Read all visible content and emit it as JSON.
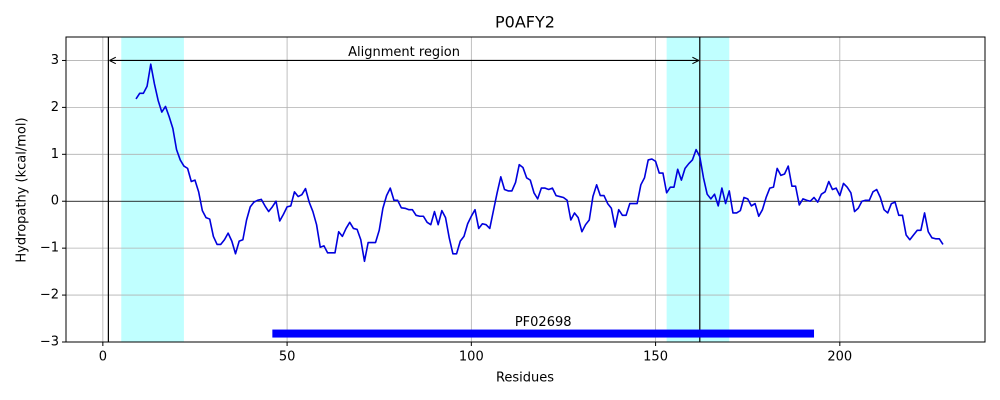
{
  "chart_data": {
    "type": "line",
    "title": "P0AFY2",
    "xlabel": "Residues",
    "ylabel": "Hydropathy (kcal/mol)",
    "xlim": [
      -10,
      239.4
    ],
    "ylim": [
      -3,
      3.5
    ],
    "xticks": [
      0,
      50,
      100,
      150,
      200
    ],
    "yticks": [
      {
        "value": -3,
        "label": "−3"
      },
      {
        "value": -2,
        "label": "−2"
      },
      {
        "value": -1,
        "label": "−1"
      },
      0,
      1,
      2,
      3
    ],
    "grid": true,
    "x": [
      9,
      10,
      11,
      12,
      13,
      14,
      15,
      16,
      17,
      18,
      19,
      20,
      21,
      22,
      23,
      24,
      25,
      26,
      27,
      28,
      29,
      30,
      31,
      32,
      33,
      34,
      35,
      36,
      37,
      38,
      39,
      40,
      41,
      42,
      43,
      44,
      45,
      46,
      47,
      48,
      49,
      50,
      51,
      52,
      53,
      54,
      55,
      56,
      57,
      58,
      59,
      60,
      61,
      62,
      63,
      64,
      65,
      66,
      67,
      68,
      69,
      70,
      71,
      72,
      73,
      74,
      75,
      76,
      77,
      78,
      79,
      80,
      81,
      82,
      83,
      84,
      85,
      86,
      87,
      88,
      89,
      90,
      91,
      92,
      93,
      94,
      95,
      96,
      97,
      98,
      99,
      100,
      101,
      102,
      103,
      104,
      105,
      106,
      107,
      108,
      109,
      110,
      111,
      112,
      113,
      114,
      115,
      116,
      117,
      118,
      119,
      120,
      121,
      122,
      123,
      124,
      125,
      126,
      127,
      128,
      129,
      130,
      131,
      132,
      133,
      134,
      135,
      136,
      137,
      138,
      139,
      140,
      141,
      142,
      143,
      144,
      145,
      146,
      147,
      148,
      149,
      150,
      151,
      152,
      153,
      154,
      155,
      156,
      157,
      158,
      159,
      160,
      161,
      162,
      163,
      164,
      165,
      166,
      167,
      168,
      169,
      170,
      171,
      172,
      173,
      174,
      175,
      176,
      177,
      178,
      179,
      180,
      181,
      182,
      183,
      184,
      185,
      186,
      187,
      188,
      189,
      190,
      191,
      192,
      193,
      194,
      195,
      196,
      197,
      198,
      199,
      200,
      201,
      202,
      203,
      204,
      205,
      206,
      207,
      208,
      209,
      210,
      211,
      212,
      213,
      214,
      215,
      216,
      217,
      218,
      219,
      220,
      221,
      222,
      223,
      224,
      225,
      226,
      227,
      228
    ],
    "series": [
      {
        "color": "#0000dd",
        "values": [
          2.18,
          2.3,
          2.3,
          2.45,
          2.92,
          2.5,
          2.15,
          1.9,
          2.02,
          1.8,
          1.55,
          1.1,
          0.88,
          0.75,
          0.7,
          0.42,
          0.45,
          0.2,
          -0.2,
          -0.35,
          -0.38,
          -0.75,
          -0.92,
          -0.92,
          -0.82,
          -0.68,
          -0.85,
          -1.12,
          -0.85,
          -0.82,
          -0.4,
          -0.12,
          -0.02,
          0.02,
          0.04,
          -0.1,
          -0.22,
          -0.12,
          0.0,
          -0.42,
          -0.28,
          -0.12,
          -0.1,
          0.2,
          0.1,
          0.14,
          0.27,
          -0.02,
          -0.22,
          -0.5,
          -0.98,
          -0.95,
          -1.1,
          -1.1,
          -1.1,
          -0.65,
          -0.75,
          -0.58,
          -0.45,
          -0.58,
          -0.6,
          -0.82,
          -1.28,
          -0.88,
          -0.88,
          -0.88,
          -0.62,
          -0.15,
          0.12,
          0.28,
          0.02,
          0.02,
          -0.14,
          -0.15,
          -0.18,
          -0.18,
          -0.3,
          -0.32,
          -0.32,
          -0.45,
          -0.5,
          -0.22,
          -0.5,
          -0.2,
          -0.35,
          -0.78,
          -1.12,
          -1.12,
          -0.85,
          -0.75,
          -0.48,
          -0.32,
          -0.18,
          -0.58,
          -0.48,
          -0.5,
          -0.58,
          -0.2,
          0.18,
          0.52,
          0.25,
          0.22,
          0.22,
          0.4,
          0.78,
          0.72,
          0.5,
          0.45,
          0.18,
          0.05,
          0.28,
          0.28,
          0.25,
          0.28,
          0.12,
          0.1,
          0.08,
          0.02,
          -0.4,
          -0.25,
          -0.35,
          -0.65,
          -0.5,
          -0.4,
          0.1,
          0.35,
          0.12,
          0.12,
          -0.05,
          -0.15,
          -0.55,
          -0.18,
          -0.3,
          -0.3,
          -0.05,
          -0.05,
          -0.05,
          0.35,
          0.5,
          0.88,
          0.9,
          0.85,
          0.6,
          0.6,
          0.18,
          0.3,
          0.3,
          0.68,
          0.45,
          0.7,
          0.8,
          0.88,
          1.1,
          0.95,
          0.5,
          0.15,
          0.05,
          0.15,
          -0.1,
          0.28,
          -0.05,
          0.22,
          -0.25,
          -0.25,
          -0.2,
          0.08,
          0.05,
          -0.1,
          -0.05,
          -0.32,
          -0.18,
          0.08,
          0.28,
          0.3,
          0.7,
          0.55,
          0.58,
          0.75,
          0.32,
          0.32,
          -0.08,
          0.05,
          0.02,
          0.0,
          0.08,
          -0.02,
          0.15,
          0.2,
          0.42,
          0.25,
          0.28,
          0.12,
          0.38,
          0.3,
          0.18,
          -0.22,
          -0.15,
          0.0,
          0.02,
          0.02,
          0.2,
          0.25,
          0.08,
          -0.18,
          -0.25,
          -0.05,
          -0.02,
          -0.3,
          -0.3,
          -0.72,
          -0.82,
          -0.72,
          -0.62,
          -0.62,
          -0.25,
          -0.65,
          -0.78,
          -0.8,
          -0.8,
          -0.92
        ]
      }
    ],
    "zero_line": 0,
    "shaded_regions": [
      {
        "start": 5,
        "end": 22
      },
      {
        "start": 153,
        "end": 170
      }
    ],
    "shade_color": "#c0ffff",
    "vlines": [
      1.5,
      162
    ],
    "alignment": {
      "text": "Alignment region",
      "start": 1.5,
      "end": 162,
      "y": 3
    },
    "domains": [
      {
        "name": "PF02698",
        "start": 46,
        "end": 193,
        "y": -2.82,
        "color": "#0000ff"
      }
    ]
  }
}
